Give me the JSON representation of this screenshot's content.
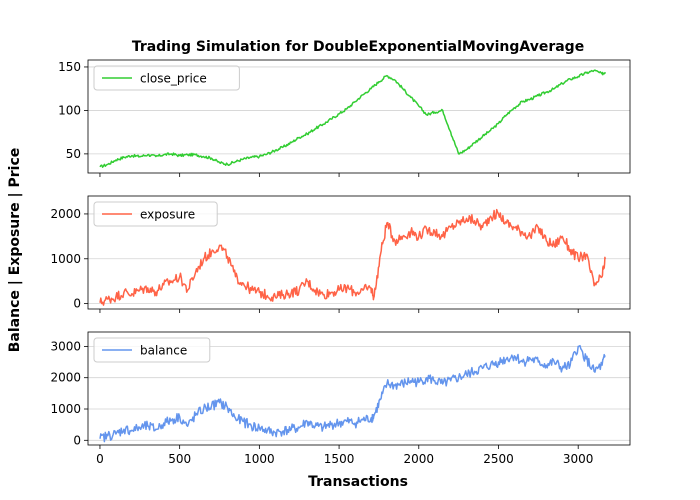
{
  "title": "Trading Simulation for DoubleExponentialMovingAverage",
  "ylabel": "Balance | Exposure | Price",
  "xlabel": "Transactions",
  "chart_data": [
    {
      "type": "line",
      "xlim": [
        -75,
        3325
      ],
      "ylim": [
        28,
        158
      ],
      "yticks": [
        50,
        100,
        150
      ],
      "grid": "horizontal",
      "legend": "top-left",
      "series": [
        {
          "name": "close_price",
          "color": "#32cd32",
          "x": [
            0,
            50,
            100,
            150,
            200,
            250,
            300,
            350,
            400,
            450,
            500,
            550,
            600,
            650,
            700,
            750,
            800,
            850,
            900,
            950,
            1000,
            1050,
            1100,
            1150,
            1200,
            1250,
            1300,
            1350,
            1400,
            1450,
            1500,
            1550,
            1600,
            1650,
            1700,
            1750,
            1800,
            1850,
            1900,
            1950,
            2000,
            2050,
            2100,
            2150,
            2200,
            2250,
            2300,
            2350,
            2400,
            2450,
            2500,
            2550,
            2600,
            2650,
            2700,
            2750,
            2800,
            2850,
            2900,
            2950,
            3000,
            3050,
            3100,
            3150,
            3170
          ],
          "values": [
            35,
            38,
            43,
            46,
            48,
            47,
            49,
            47,
            49,
            50,
            48,
            49,
            49,
            47,
            45,
            40,
            38,
            41,
            44,
            46,
            47,
            50,
            54,
            58,
            63,
            69,
            73,
            79,
            84,
            90,
            96,
            102,
            110,
            118,
            125,
            133,
            140,
            135,
            125,
            115,
            105,
            95,
            98,
            100,
            75,
            50,
            55,
            63,
            70,
            77,
            85,
            95,
            103,
            110,
            113,
            117,
            121,
            125,
            131,
            136,
            139,
            143,
            146,
            142,
            144
          ]
        }
      ]
    },
    {
      "type": "line",
      "xlim": [
        -75,
        3325
      ],
      "ylim": [
        -120,
        2400
      ],
      "yticks": [
        0,
        1000,
        2000
      ],
      "grid": "horizontal",
      "legend": "top-left",
      "series": [
        {
          "name": "exposure",
          "color": "#ff6347",
          "x": [
            0,
            50,
            100,
            150,
            200,
            250,
            300,
            350,
            400,
            450,
            500,
            550,
            600,
            650,
            700,
            750,
            800,
            850,
            900,
            950,
            1000,
            1050,
            1100,
            1150,
            1200,
            1250,
            1300,
            1350,
            1400,
            1450,
            1500,
            1550,
            1600,
            1650,
            1700,
            1720,
            1760,
            1800,
            1850,
            1900,
            1950,
            2000,
            2050,
            2100,
            2150,
            2200,
            2250,
            2300,
            2350,
            2400,
            2450,
            2500,
            2550,
            2600,
            2650,
            2700,
            2750,
            2800,
            2850,
            2900,
            2950,
            3000,
            3050,
            3100,
            3150,
            3170
          ],
          "values": [
            20,
            100,
            150,
            250,
            220,
            300,
            350,
            260,
            420,
            500,
            600,
            300,
            700,
            1000,
            1150,
            1300,
            1050,
            600,
            450,
            300,
            250,
            180,
            150,
            200,
            250,
            300,
            500,
            300,
            200,
            250,
            300,
            350,
            250,
            300,
            350,
            150,
            1100,
            1800,
            1400,
            1500,
            1600,
            1500,
            1650,
            1600,
            1500,
            1700,
            1800,
            1900,
            1850,
            1700,
            1950,
            2000,
            1800,
            1700,
            1600,
            1500,
            1700,
            1400,
            1300,
            1500,
            1200,
            1000,
            1100,
            400,
            600,
            1000
          ]
        }
      ]
    },
    {
      "type": "line",
      "xlim": [
        -75,
        3325
      ],
      "ylim": [
        -150,
        3460
      ],
      "yticks": [
        0,
        1000,
        2000,
        3000
      ],
      "grid": "horizontal",
      "legend": "top-left",
      "series": [
        {
          "name": "balance",
          "color": "#6495ed",
          "x": [
            0,
            50,
            100,
            150,
            200,
            250,
            300,
            350,
            400,
            450,
            500,
            550,
            600,
            650,
            700,
            750,
            800,
            850,
            900,
            950,
            1000,
            1050,
            1100,
            1150,
            1200,
            1250,
            1300,
            1350,
            1400,
            1450,
            1500,
            1550,
            1600,
            1650,
            1700,
            1720,
            1760,
            1800,
            1850,
            1900,
            1950,
            2000,
            2050,
            2100,
            2150,
            2200,
            2250,
            2300,
            2350,
            2400,
            2450,
            2500,
            2550,
            2600,
            2650,
            2700,
            2750,
            2800,
            2850,
            2900,
            2950,
            3000,
            3050,
            3100,
            3150,
            3170
          ],
          "values": [
            50,
            150,
            200,
            350,
            320,
            400,
            450,
            350,
            550,
            650,
            750,
            450,
            800,
            1000,
            1100,
            1200,
            1050,
            700,
            600,
            450,
            400,
            300,
            250,
            300,
            350,
            400,
            600,
            450,
            400,
            500,
            550,
            600,
            550,
            650,
            700,
            800,
            1300,
            1800,
            1750,
            1800,
            1900,
            1850,
            2000,
            1900,
            1800,
            1900,
            2000,
            2100,
            2200,
            2300,
            2400,
            2500,
            2600,
            2700,
            2500,
            2600,
            2500,
            2400,
            2500,
            2300,
            2400,
            3000,
            2600,
            2200,
            2400,
            2700
          ]
        }
      ]
    }
  ]
}
